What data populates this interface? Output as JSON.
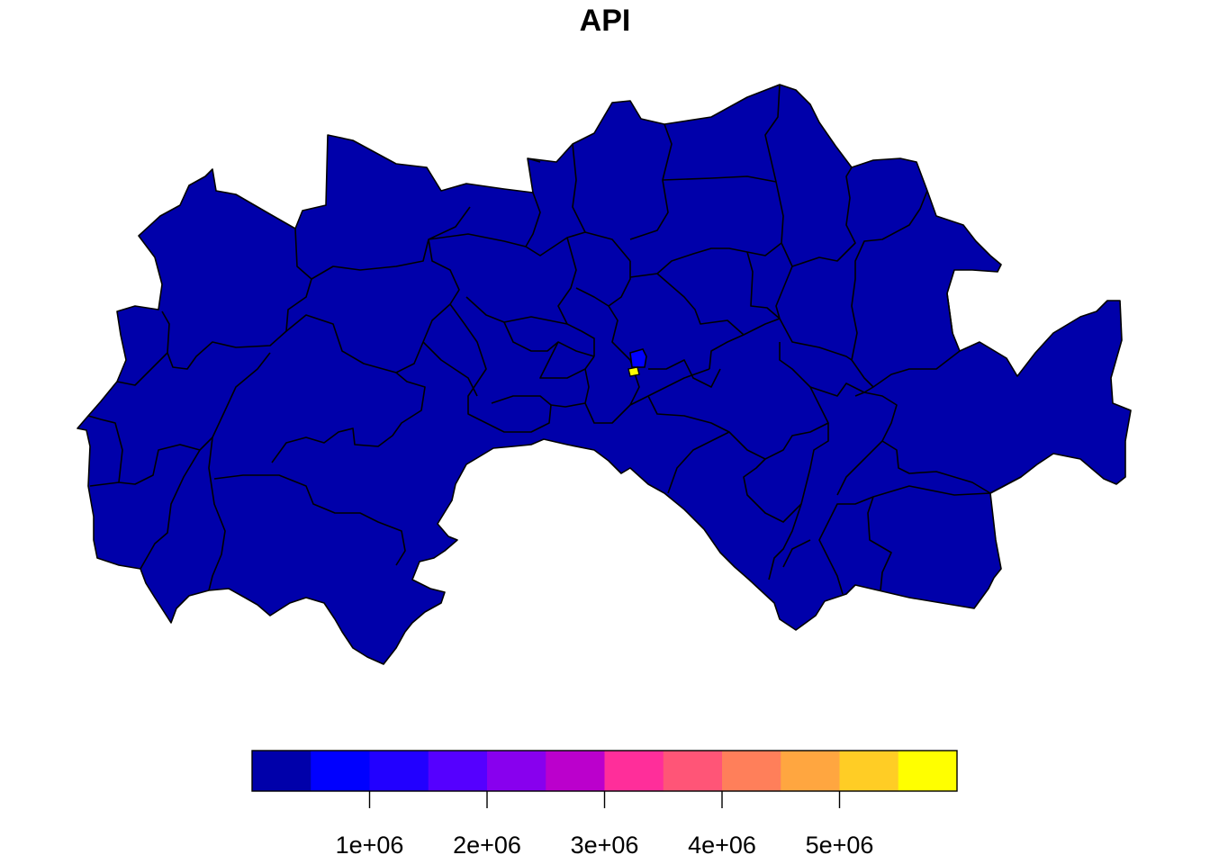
{
  "title": "API",
  "colors": {
    "base_region": "#0000AA",
    "highlight_mid": "#0000FF",
    "highlight_max": "#FFFF00",
    "outline": "#000000"
  },
  "legend": {
    "colors": [
      "#0000AA",
      "#0000FF",
      "#2200FF",
      "#5500FF",
      "#8800EE",
      "#BB00CC",
      "#FF2E9A",
      "#FF5577",
      "#FF7F5A",
      "#FFA640",
      "#FFCD25",
      "#FFFF00"
    ],
    "ticks": [
      {
        "value": 1000000,
        "label": "1e+06"
      },
      {
        "value": 2000000,
        "label": "2e+06"
      },
      {
        "value": 3000000,
        "label": "3e+06"
      },
      {
        "value": 4000000,
        "label": "4e+06"
      },
      {
        "value": 5000000,
        "label": "5e+06"
      }
    ],
    "range": [
      0,
      6000000
    ]
  }
}
